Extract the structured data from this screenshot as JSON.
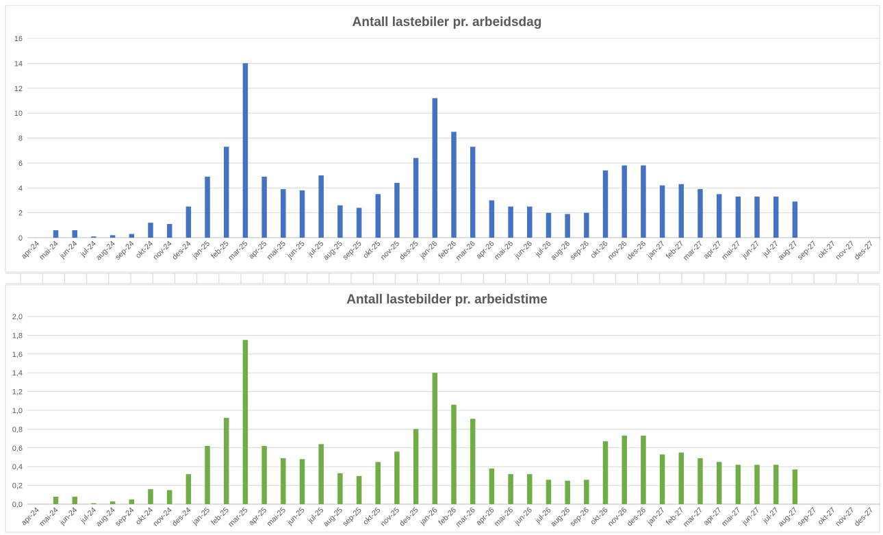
{
  "colors": {
    "series1": "#4472c4",
    "series2": "#70ad47",
    "grid": "#d9d9d9",
    "text": "#595959"
  },
  "chart_data": [
    {
      "type": "bar",
      "title": "Antall lastebiler pr. arbeidsdag",
      "xlabel": "",
      "ylabel": "",
      "ylim": [
        0,
        16
      ],
      "yticks": [
        "0",
        "2",
        "4",
        "6",
        "8",
        "10",
        "12",
        "14",
        "16"
      ],
      "grid": true,
      "legend": "none",
      "categories": [
        "apr-24",
        "mai-24",
        "jun-24",
        "jul-24",
        "aug-24",
        "sep-24",
        "okt-24",
        "nov-24",
        "des-24",
        "jan-25",
        "feb-25",
        "mar-25",
        "apr-25",
        "mai-25",
        "jun-25",
        "jul-25",
        "aug-25",
        "sep-25",
        "okt-25",
        "nov-25",
        "des-25",
        "jan-26",
        "feb-26",
        "mar-26",
        "apr-26",
        "mai-26",
        "jun-26",
        "jul-26",
        "aug-26",
        "sep-26",
        "okt-26",
        "nov-26",
        "des-26",
        "jan-27",
        "feb-27",
        "mar-27",
        "apr-27",
        "mai-27",
        "jun-27",
        "jul-27",
        "aug-27",
        "sep-27",
        "okt-27",
        "nov-27",
        "des-27"
      ],
      "values": [
        0,
        0.6,
        0.6,
        0.1,
        0.2,
        0.3,
        1.2,
        1.1,
        2.5,
        4.9,
        7.3,
        14.0,
        4.9,
        3.9,
        3.8,
        5.0,
        2.6,
        2.4,
        3.5,
        4.4,
        6.4,
        11.2,
        8.5,
        7.3,
        3.0,
        2.5,
        2.5,
        2.0,
        1.9,
        2.0,
        5.4,
        5.8,
        5.8,
        4.2,
        4.3,
        3.9,
        3.5,
        3.3,
        3.3,
        3.3,
        2.9,
        0,
        0,
        0,
        0
      ]
    },
    {
      "type": "bar",
      "title": "Antall lastebilder pr. arbeidstime",
      "xlabel": "",
      "ylabel": "",
      "ylim": [
        0,
        2.0
      ],
      "yticks": [
        "0,0",
        "0,2",
        "0,4",
        "0,6",
        "0,8",
        "1,0",
        "1,2",
        "1,4",
        "1,6",
        "1,8",
        "2,0"
      ],
      "grid": true,
      "legend": "none",
      "categories": [
        "apr-24",
        "mai-24",
        "jun-24",
        "jul-24",
        "aug-24",
        "sep-24",
        "okt-24",
        "nov-24",
        "des-24",
        "jan-25",
        "feb-25",
        "mar-25",
        "apr-25",
        "mai-25",
        "jun-25",
        "jul-25",
        "aug-25",
        "sep-25",
        "okt-25",
        "nov-25",
        "des-25",
        "jan-26",
        "feb-26",
        "mar-26",
        "apr-26",
        "mai-26",
        "jun-26",
        "jul-26",
        "aug-26",
        "sep-26",
        "okt-26",
        "nov-26",
        "des-26",
        "jan-27",
        "feb-27",
        "mar-27",
        "apr-27",
        "mai-27",
        "jun-27",
        "jul-27",
        "aug-27",
        "sep-27",
        "okt-27",
        "nov-27",
        "des-27"
      ],
      "values": [
        0,
        0.08,
        0.08,
        0.01,
        0.03,
        0.05,
        0.16,
        0.15,
        0.32,
        0.62,
        0.92,
        1.75,
        0.62,
        0.49,
        0.48,
        0.64,
        0.33,
        0.3,
        0.45,
        0.56,
        0.8,
        1.4,
        1.06,
        0.91,
        0.38,
        0.32,
        0.32,
        0.26,
        0.25,
        0.26,
        0.67,
        0.73,
        0.73,
        0.53,
        0.55,
        0.49,
        0.45,
        0.42,
        0.42,
        0.42,
        0.37,
        0,
        0,
        0,
        0
      ]
    }
  ]
}
